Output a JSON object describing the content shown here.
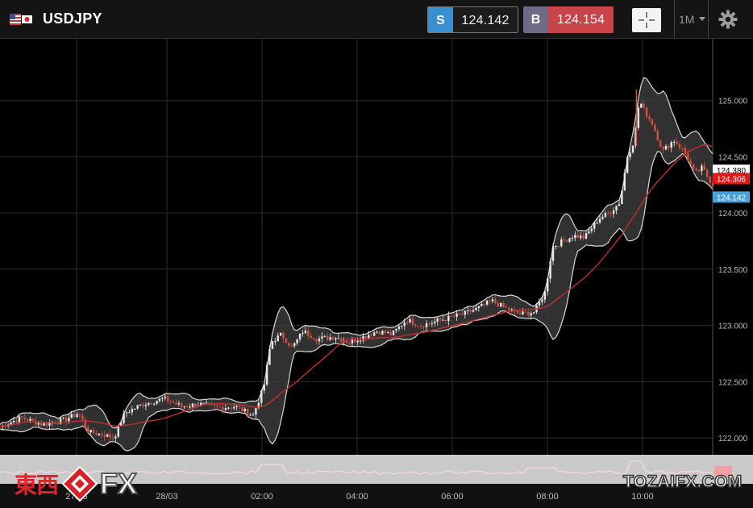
{
  "header": {
    "symbol": "USDJPY",
    "flag": "us-jp-flag-icon",
    "sell": {
      "tag": "S",
      "price": "124.142"
    },
    "buy": {
      "tag": "B",
      "price": "124.154"
    },
    "crosshair": "crosshair-icon",
    "timeframe": "1M",
    "timeframe_icon": "caret-down-icon",
    "settings": "gear-icon"
  },
  "colors": {
    "sell": "#3a8fd0",
    "buy": "#c84448",
    "candle_up": "#e8e8e8",
    "candle_down": "#d85040",
    "bollinger": "#d8d8d8",
    "moving_average": "#c0302c"
  },
  "chart_data": {
    "type": "candlestick",
    "symbol": "USDJPY",
    "y_tick_labels": [
      "125.000",
      "124.500",
      "124.000",
      "123.500",
      "123.000",
      "122.500",
      "122.000"
    ],
    "y_ticks": [
      125.0,
      124.5,
      124.0,
      123.5,
      123.0,
      122.5,
      122.0
    ],
    "ylim": [
      121.85,
      125.55
    ],
    "x_tick_labels": [
      "27/03",
      "28/03",
      "02:00",
      "04:00",
      "06:00",
      "08:00",
      "10:00"
    ],
    "grid": true,
    "price_tags": [
      {
        "label": "124.380",
        "value": 124.38,
        "style": "white"
      },
      {
        "label": "124.306",
        "value": 124.306,
        "style": "red"
      },
      {
        "label": "124.142",
        "value": 124.142,
        "style": "blue"
      }
    ],
    "price_path": [
      [
        0.0,
        122.1
      ],
      [
        0.03,
        122.18
      ],
      [
        0.06,
        122.12
      ],
      [
        0.09,
        122.16
      ],
      [
        0.11,
        122.22
      ],
      [
        0.125,
        122.05
      ],
      [
        0.145,
        122.03
      ],
      [
        0.16,
        122.0
      ],
      [
        0.175,
        122.22
      ],
      [
        0.2,
        122.3
      ],
      [
        0.23,
        122.35
      ],
      [
        0.255,
        122.28
      ],
      [
        0.28,
        122.3
      ],
      [
        0.31,
        122.27
      ],
      [
        0.33,
        122.28
      ],
      [
        0.355,
        122.2
      ],
      [
        0.37,
        122.45
      ],
      [
        0.38,
        122.85
      ],
      [
        0.395,
        122.92
      ],
      [
        0.41,
        122.8
      ],
      [
        0.425,
        122.95
      ],
      [
        0.445,
        122.88
      ],
      [
        0.47,
        122.9
      ],
      [
        0.49,
        122.85
      ],
      [
        0.51,
        122.9
      ],
      [
        0.53,
        122.95
      ],
      [
        0.55,
        122.92
      ],
      [
        0.57,
        123.05
      ],
      [
        0.59,
        123.0
      ],
      [
        0.62,
        123.05
      ],
      [
        0.65,
        123.1
      ],
      [
        0.67,
        123.15
      ],
      [
        0.69,
        123.22
      ],
      [
        0.71,
        123.15
      ],
      [
        0.73,
        123.1
      ],
      [
        0.75,
        123.12
      ],
      [
        0.765,
        123.3
      ],
      [
        0.775,
        123.7
      ],
      [
        0.79,
        123.75
      ],
      [
        0.805,
        123.8
      ],
      [
        0.82,
        123.78
      ],
      [
        0.84,
        123.95
      ],
      [
        0.855,
        124.0
      ],
      [
        0.87,
        124.1
      ],
      [
        0.88,
        124.5
      ],
      [
        0.89,
        124.65
      ],
      [
        0.897,
        125.0
      ],
      [
        0.905,
        124.9
      ],
      [
        0.915,
        124.8
      ],
      [
        0.93,
        124.55
      ],
      [
        0.945,
        124.65
      ],
      [
        0.96,
        124.55
      ],
      [
        0.975,
        124.35
      ],
      [
        0.985,
        124.4
      ],
      [
        1.0,
        124.25
      ]
    ]
  },
  "time_axis": [
    "27/03",
    "28/03",
    "02:00",
    "04:00",
    "06:00",
    "08:00",
    "10:00"
  ],
  "watermark": {
    "cjk": "東西",
    "fx": "FX",
    "site": "TOZAIFX.COM"
  }
}
